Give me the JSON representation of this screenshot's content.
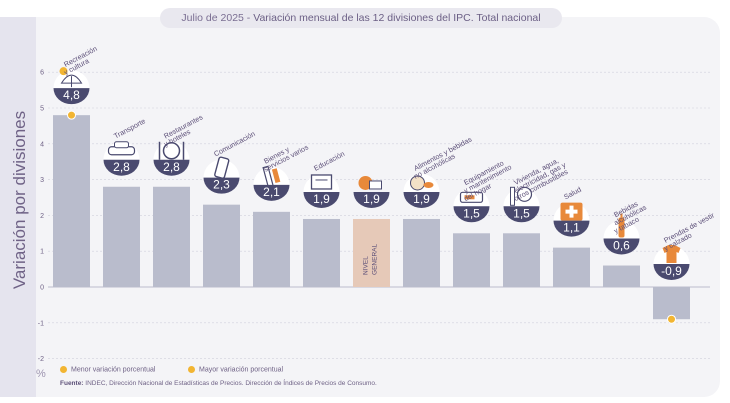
{
  "header": {
    "period": "Julio de 2025",
    "separator": " - ",
    "title": "Variación mensual de las 12 divisiones del IPC. Total nacional"
  },
  "y_axis_title": "Variación por divisiones",
  "unit_symbol": "%",
  "legend": {
    "min_label": "Menor variación porcentual",
    "max_label": "Mayor variación porcentual",
    "min_color": "#f2b532",
    "max_color": "#f2b532"
  },
  "source": {
    "label": "Fuente:",
    "text": "INDEC, Dirección Nacional de Estadísticas de Precios. Dirección de Índices de Precios de Consumo."
  },
  "colors": {
    "bar": "#b9bccc",
    "bar_general": "#e6c9b8",
    "bubble": "#4a4a6f",
    "label_text": "#5c4f78",
    "grid": "#cfd0dc"
  },
  "chart_data": {
    "type": "bar",
    "title": "Variación mensual de las 12 divisiones del IPC. Total nacional",
    "ylabel": "Variación por divisiones",
    "ylim": [
      -2,
      6
    ],
    "yticks": [
      -2,
      -1,
      0,
      1,
      2,
      3,
      4,
      5,
      6
    ],
    "grid": true,
    "legend_position": "bottom-left",
    "categories": [
      [
        "Recreación",
        "y cultura"
      ],
      [
        "Transporte"
      ],
      [
        "Restaurantes",
        "y hoteles"
      ],
      [
        "Comunicación"
      ],
      [
        "Bienes y",
        "servicios varios"
      ],
      [
        "Educación"
      ],
      [
        "NIVEL",
        "GENERAL"
      ],
      [
        "Alimentos y bebidas",
        "no alcohólicas"
      ],
      [
        "Equipamiento",
        "y mantenimiento",
        "del hogar"
      ],
      [
        "Vivienda, agua,",
        "electricidad, gas y",
        "otros combustibles"
      ],
      [
        "Salud"
      ],
      [
        "Bebidas",
        "alcohólicas",
        "y tabaco"
      ],
      [
        "Prendas de vestir",
        "y calzado"
      ]
    ],
    "values": [
      4.8,
      2.8,
      2.8,
      2.3,
      2.1,
      1.9,
      1.9,
      1.9,
      1.5,
      1.5,
      1.1,
      0.6,
      -0.9
    ],
    "value_labels": [
      "4,8",
      "2,8",
      "2,8",
      "2,3",
      "2,1",
      "1,9",
      "1,9",
      "1,9",
      "1,5",
      "1,5",
      "1,1",
      "0,6",
      "-0,9"
    ],
    "icons": [
      "sun-umbrella-icon",
      "car-icon",
      "plate-cutlery-icon",
      "phone-icon",
      "comb-icon",
      "book-icon",
      "",
      "food-icon",
      "appliance-icon",
      "lightbulb-icon",
      "medical-cross-icon",
      "bottle-icon",
      "clothing-icon"
    ],
    "general_index": 6,
    "max_index": 0,
    "min_index": 12
  }
}
